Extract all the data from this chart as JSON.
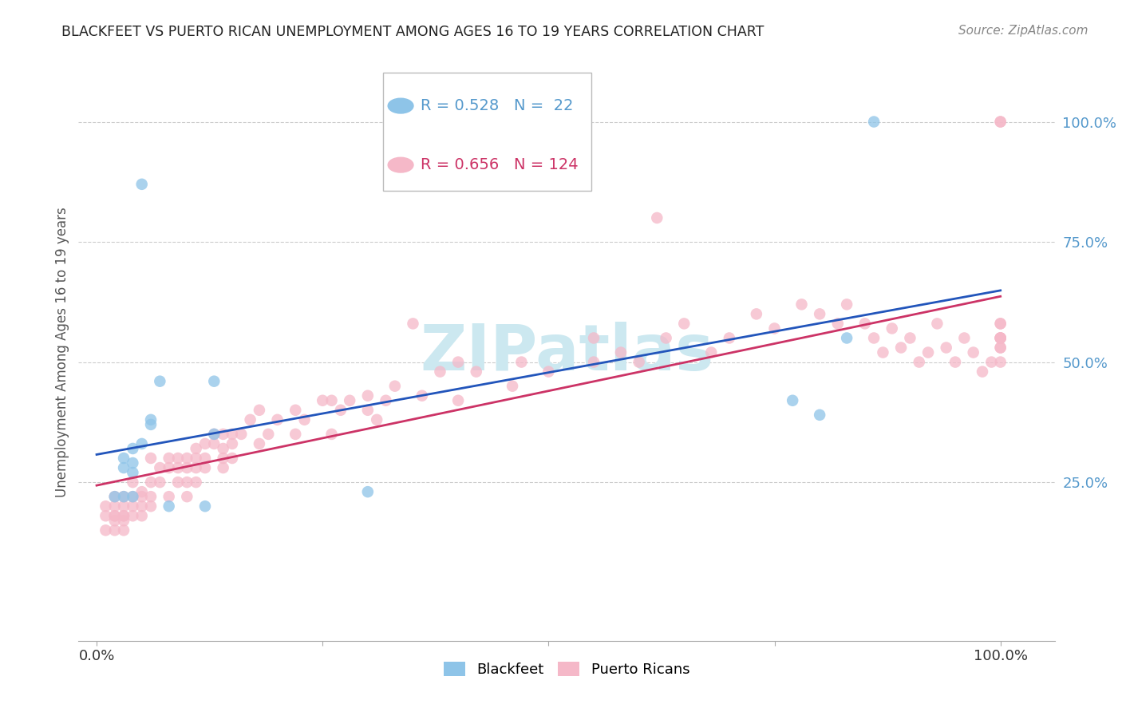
{
  "title": "BLACKFEET VS PUERTO RICAN UNEMPLOYMENT AMONG AGES 16 TO 19 YEARS CORRELATION CHART",
  "source": "Source: ZipAtlas.com",
  "ylabel": "Unemployment Among Ages 16 to 19 years",
  "legend_blue_r": "0.528",
  "legend_blue_n": "22",
  "legend_pink_r": "0.656",
  "legend_pink_n": "124",
  "blue_scatter_color": "#8ec4e8",
  "pink_scatter_color": "#f5b8c8",
  "trend_blue_color": "#2255bb",
  "trend_pink_color": "#cc3366",
  "right_tick_color": "#5599cc",
  "watermark_color": "#cce8f0",
  "grid_color": "#cccccc",
  "background_color": "#ffffff",
  "blackfeet_x": [
    0.02,
    0.03,
    0.03,
    0.03,
    0.04,
    0.04,
    0.04,
    0.04,
    0.05,
    0.05,
    0.06,
    0.06,
    0.07,
    0.08,
    0.12,
    0.13,
    0.13,
    0.3,
    0.77,
    0.8,
    0.83,
    0.86
  ],
  "blackfeet_y": [
    0.22,
    0.28,
    0.3,
    0.22,
    0.27,
    0.22,
    0.29,
    0.32,
    0.33,
    0.87,
    0.38,
    0.37,
    0.46,
    0.2,
    0.2,
    0.35,
    0.46,
    0.23,
    0.42,
    0.39,
    0.55,
    1.0
  ],
  "puerto_rican_x": [
    0.01,
    0.01,
    0.01,
    0.02,
    0.02,
    0.02,
    0.02,
    0.02,
    0.02,
    0.03,
    0.03,
    0.03,
    0.03,
    0.03,
    0.03,
    0.04,
    0.04,
    0.04,
    0.04,
    0.05,
    0.05,
    0.05,
    0.05,
    0.06,
    0.06,
    0.06,
    0.06,
    0.07,
    0.07,
    0.08,
    0.08,
    0.08,
    0.09,
    0.09,
    0.09,
    0.1,
    0.1,
    0.1,
    0.1,
    0.11,
    0.11,
    0.11,
    0.11,
    0.12,
    0.12,
    0.12,
    0.13,
    0.13,
    0.14,
    0.14,
    0.14,
    0.14,
    0.15,
    0.15,
    0.15,
    0.16,
    0.17,
    0.18,
    0.18,
    0.19,
    0.2,
    0.22,
    0.22,
    0.23,
    0.25,
    0.26,
    0.26,
    0.27,
    0.28,
    0.3,
    0.3,
    0.31,
    0.32,
    0.33,
    0.35,
    0.36,
    0.38,
    0.4,
    0.4,
    0.42,
    0.46,
    0.47,
    0.5,
    0.55,
    0.55,
    0.58,
    0.6,
    0.62,
    0.63,
    0.65,
    0.68,
    0.7,
    0.73,
    0.75,
    0.78,
    0.8,
    0.82,
    0.83,
    0.85,
    0.86,
    0.87,
    0.88,
    0.89,
    0.9,
    0.91,
    0.92,
    0.93,
    0.94,
    0.95,
    0.96,
    0.97,
    0.98,
    0.99,
    1.0,
    1.0,
    1.0,
    1.0,
    1.0,
    1.0,
    1.0,
    1.0,
    1.0,
    1.0,
    1.0
  ],
  "puerto_rican_y": [
    0.15,
    0.18,
    0.2,
    0.15,
    0.18,
    0.17,
    0.2,
    0.22,
    0.18,
    0.15,
    0.18,
    0.2,
    0.22,
    0.18,
    0.17,
    0.2,
    0.22,
    0.25,
    0.18,
    0.23,
    0.2,
    0.22,
    0.18,
    0.25,
    0.3,
    0.22,
    0.2,
    0.28,
    0.25,
    0.22,
    0.28,
    0.3,
    0.25,
    0.28,
    0.3,
    0.25,
    0.28,
    0.22,
    0.3,
    0.32,
    0.28,
    0.25,
    0.3,
    0.33,
    0.28,
    0.3,
    0.35,
    0.33,
    0.32,
    0.35,
    0.28,
    0.3,
    0.33,
    0.35,
    0.3,
    0.35,
    0.38,
    0.33,
    0.4,
    0.35,
    0.38,
    0.4,
    0.35,
    0.38,
    0.42,
    0.42,
    0.35,
    0.4,
    0.42,
    0.43,
    0.4,
    0.38,
    0.42,
    0.45,
    0.58,
    0.43,
    0.48,
    0.5,
    0.42,
    0.48,
    0.45,
    0.5,
    0.48,
    0.55,
    0.5,
    0.52,
    0.5,
    0.8,
    0.55,
    0.58,
    0.52,
    0.55,
    0.6,
    0.57,
    0.62,
    0.6,
    0.58,
    0.62,
    0.58,
    0.55,
    0.52,
    0.57,
    0.53,
    0.55,
    0.5,
    0.52,
    0.58,
    0.53,
    0.5,
    0.55,
    0.52,
    0.48,
    0.5,
    0.53,
    0.55,
    0.58,
    1.0,
    1.0,
    0.53,
    0.55,
    0.58,
    0.55,
    0.5,
    0.55
  ],
  "xlim": [
    -0.02,
    1.06
  ],
  "ylim": [
    -0.08,
    1.12
  ],
  "xticks": [
    0.0,
    0.25,
    0.5,
    0.75,
    1.0
  ],
  "xtick_labels": [
    "0.0%",
    "",
    "",
    "",
    "100.0%"
  ],
  "ytick_positions": [
    0.25,
    0.5,
    0.75,
    1.0
  ],
  "ytick_labels": [
    "25.0%",
    "50.0%",
    "75.0%",
    "100.0%"
  ]
}
